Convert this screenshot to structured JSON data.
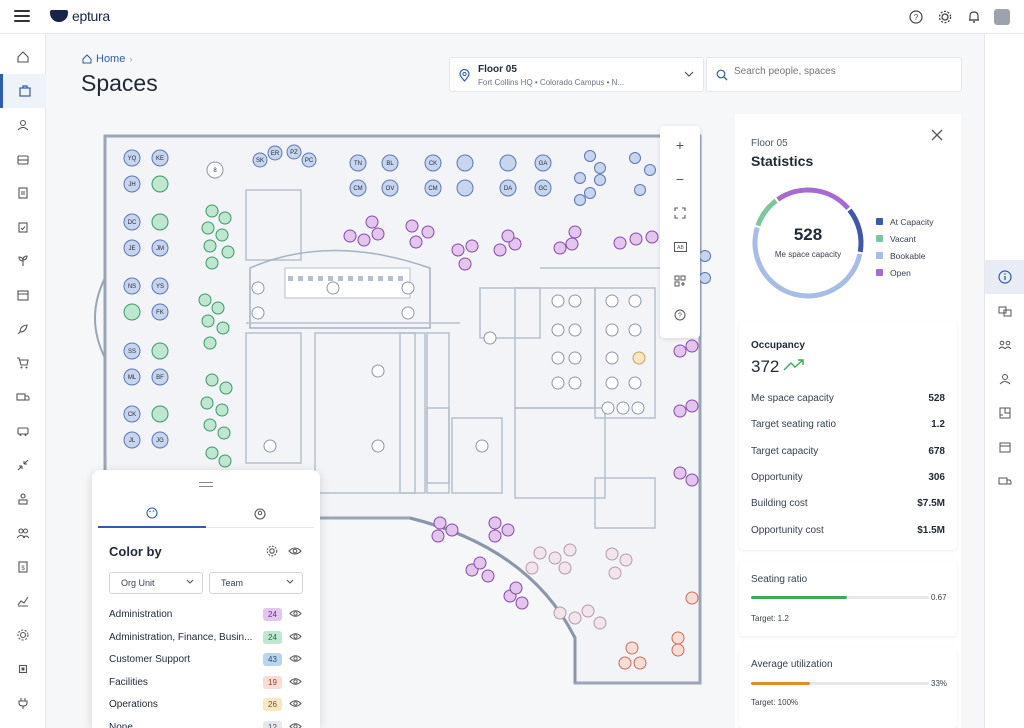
{
  "app": {
    "brand": "eptura"
  },
  "header": {
    "breadcrumb_home": "Home",
    "page_title": "Spaces",
    "floor_name": "Floor 05",
    "floor_location": "Fort Collins HQ  • Colorado Campus  • N...",
    "search_placeholder": "Search people, spaces"
  },
  "colors": {
    "accent": "#2d5ca8",
    "at_capacity": "#3f59a8",
    "vacant": "#7cc79b",
    "bookable": "#a7bde6",
    "open": "#a66ad1",
    "seating_bar": "#3caa5b",
    "util_bar": "#e28a27"
  },
  "color_by": {
    "title": "Color by",
    "filter_1": "Org Unit",
    "filter_2": "Team",
    "rows": [
      {
        "label": "Administration",
        "count": "24",
        "badge_bg": "#e3c6ee",
        "badge_fg": "#6b2d85"
      },
      {
        "label": "Administration, Finance, Busin...",
        "count": "24",
        "badge_bg": "#bfe6d0",
        "badge_fg": "#1f6b41"
      },
      {
        "label": "Customer Support",
        "count": "43",
        "badge_bg": "#bcd3ec",
        "badge_fg": "#1f4f82"
      },
      {
        "label": "Facilities",
        "count": "19",
        "badge_bg": "#f8dcd5",
        "badge_fg": "#92402c"
      },
      {
        "label": "Operations",
        "count": "26",
        "badge_bg": "#f7e7c4",
        "badge_fg": "#7a5a14"
      },
      {
        "label": "None",
        "count": "12",
        "badge_bg": "#e5e7eb",
        "badge_fg": "#4b5563"
      }
    ]
  },
  "statistics": {
    "floor": "Floor 05",
    "title": "Statistics",
    "capacity_value": "528",
    "capacity_label": "Me space capacity",
    "donut": {
      "at_capacity": 0.14,
      "vacant": 0.1,
      "bookable": 0.52,
      "open": 0.24
    },
    "legend": [
      "At Capacity",
      "Vacant",
      "Bookable",
      "Open"
    ],
    "occupancy_label": "Occupancy",
    "occupancy_value": "372",
    "metrics": [
      {
        "key": "Me space capacity",
        "value": "528"
      },
      {
        "key": "Target seating ratio",
        "value": "1.2"
      },
      {
        "key": "Target capacity",
        "value": "678"
      },
      {
        "key": "Opportunity",
        "value": "306"
      },
      {
        "key": "Building cost",
        "value": "$7.5M"
      },
      {
        "key": "Opportunity cost",
        "value": "$1.5M"
      }
    ],
    "seating_ratio_label": "Seating ratio",
    "seating_ratio_value": "0.67",
    "seating_ratio_fill": 0.54,
    "seating_ratio_target": "Target: 1.2",
    "avg_util_label": "Average utilization",
    "avg_util_value": "33%",
    "avg_util_fill": 0.33,
    "avg_util_target": "Target: 100%"
  },
  "map": {
    "desk_labels_left": [
      "YQ",
      "KE",
      "JH",
      "DC",
      "JE",
      "JM",
      "NS",
      "YS",
      "FK",
      "SS",
      "ML",
      "BF",
      "CK",
      "JL",
      "JG"
    ],
    "desk_labels_top": [
      "ER",
      "PZ",
      "SK",
      "PC",
      "TN",
      "BL",
      "CK",
      "GA",
      "CM",
      "OV",
      "CM",
      "DA",
      "GC"
    ],
    "table_number": "8"
  }
}
